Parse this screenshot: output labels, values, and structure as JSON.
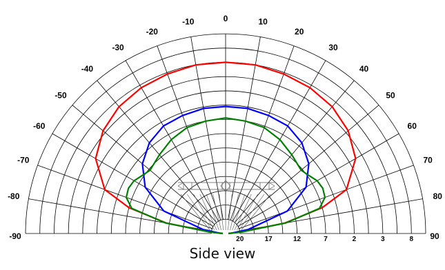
{
  "caption": "Side view",
  "chart_data": {
    "type": "polar",
    "angle_labels": [
      "-90",
      "-80",
      "-70",
      "-60",
      "-50",
      "-40",
      "-30",
      "-20",
      "-10",
      "0",
      "10",
      "20",
      "30",
      "40",
      "50",
      "60",
      "70",
      "80",
      "90"
    ],
    "angles": [
      -90,
      -80,
      -70,
      -60,
      -50,
      -40,
      -30,
      -20,
      -10,
      0,
      10,
      20,
      30,
      40,
      50,
      60,
      70,
      80,
      90
    ],
    "radial_labels": [
      "20",
      "17",
      "12",
      "7",
      "2",
      "3",
      "8"
    ],
    "radial_tick_values": [
      1,
      3,
      5,
      7,
      9,
      11,
      13
    ],
    "rmax": 14,
    "rings": 14,
    "series": [
      {
        "color": "#ff0000",
        "points": [
          [
            -90,
            0.2
          ],
          [
            -85,
            1.0
          ],
          [
            -80,
            4.2
          ],
          [
            -75,
            7.0
          ],
          [
            -70,
            9.0
          ],
          [
            -60,
            10.5
          ],
          [
            -50,
            11.2
          ],
          [
            -40,
            11.6
          ],
          [
            -30,
            11.8
          ],
          [
            -20,
            11.9
          ],
          [
            -10,
            12.0
          ],
          [
            0,
            12.0
          ],
          [
            10,
            12.0
          ],
          [
            20,
            11.9
          ],
          [
            30,
            11.8
          ],
          [
            40,
            11.6
          ],
          [
            50,
            11.2
          ],
          [
            60,
            10.5
          ],
          [
            70,
            9.0
          ],
          [
            75,
            7.0
          ],
          [
            80,
            4.2
          ],
          [
            85,
            1.0
          ],
          [
            90,
            0.2
          ]
        ]
      },
      {
        "color": "#0000ff",
        "points": [
          [
            -90,
            0.2
          ],
          [
            -85,
            0.5
          ],
          [
            -80,
            1.6
          ],
          [
            -70,
            4.6
          ],
          [
            -60,
            6.5
          ],
          [
            -50,
            7.6
          ],
          [
            -40,
            8.3
          ],
          [
            -30,
            8.7
          ],
          [
            -20,
            8.8
          ],
          [
            -10,
            8.9
          ],
          [
            0,
            8.9
          ],
          [
            10,
            8.9
          ],
          [
            20,
            8.8
          ],
          [
            30,
            8.7
          ],
          [
            40,
            8.3
          ],
          [
            50,
            7.6
          ],
          [
            60,
            6.5
          ],
          [
            70,
            4.6
          ],
          [
            80,
            1.6
          ],
          [
            85,
            0.5
          ],
          [
            90,
            0.2
          ]
        ]
      },
      {
        "color": "#008000",
        "points": [
          [
            -90,
            0.2
          ],
          [
            -85,
            1.1
          ],
          [
            -80,
            4.3
          ],
          [
            -75,
            6.8
          ],
          [
            -70,
            7.4
          ],
          [
            -65,
            7.5
          ],
          [
            -60,
            7.4
          ],
          [
            -55,
            7.1
          ],
          [
            -50,
            6.9
          ],
          [
            -40,
            7.2
          ],
          [
            -30,
            7.6
          ],
          [
            -20,
            7.9
          ],
          [
            -10,
            8.0
          ],
          [
            0,
            8.1
          ],
          [
            10,
            8.0
          ],
          [
            20,
            7.9
          ],
          [
            30,
            7.6
          ],
          [
            40,
            7.2
          ],
          [
            50,
            6.9
          ],
          [
            55,
            7.1
          ],
          [
            60,
            7.4
          ],
          [
            65,
            7.5
          ],
          [
            70,
            7.4
          ],
          [
            75,
            6.8
          ],
          [
            80,
            4.3
          ],
          [
            85,
            1.1
          ],
          [
            90,
            0.2
          ]
        ]
      }
    ]
  }
}
